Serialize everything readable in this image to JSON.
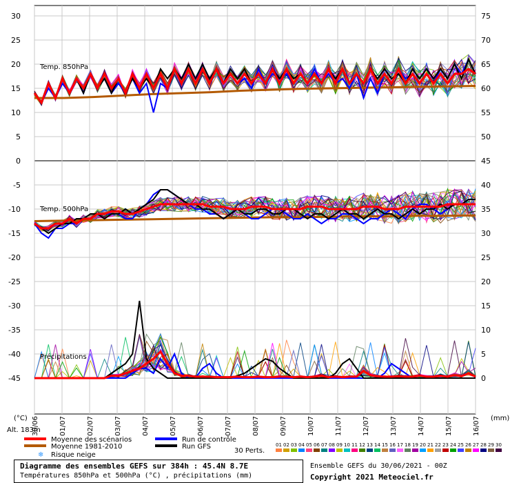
{
  "chart_data": {
    "type": "line",
    "left_axis_label": "(°C)",
    "right_axis_label": "(mm)",
    "left_ticks": [
      30,
      25,
      20,
      15,
      10,
      5,
      0,
      -5,
      -10,
      -15,
      -20,
      -25,
      -30,
      -35,
      -40,
      -45
    ],
    "right_ticks": [
      75,
      70,
      65,
      60,
      55,
      50,
      45,
      40,
      35,
      30,
      25,
      20,
      15,
      10,
      5,
      0
    ],
    "x_ticks": [
      "01/07",
      "02/07",
      "03/07",
      "04/07",
      "05/07",
      "06/07",
      "07/07",
      "08/07",
      "09/07",
      "10/07",
      "11/07",
      "12/07",
      "13/07",
      "14/07",
      "15/07",
      "16/07"
    ],
    "first_x_tick": "30/06",
    "panel_labels": {
      "t850": "Temp. 850hPa",
      "t500": "Temp. 500hPa",
      "precip": "Précipitations"
    },
    "altitude": "Alt. 183m",
    "series": [
      {
        "name": "Moyenne des scénarios",
        "color": "#ff0000",
        "t850": [
          14,
          12,
          16,
          13,
          17,
          14,
          17,
          15,
          18,
          15,
          18,
          15,
          17,
          14,
          18,
          15,
          18,
          15,
          18,
          15,
          19,
          16,
          19,
          16,
          19,
          16,
          19,
          16,
          18,
          16,
          18,
          16,
          18,
          16,
          19,
          16,
          19,
          16,
          18,
          16,
          18,
          16,
          19,
          16,
          19,
          16,
          18,
          16,
          19,
          16,
          18,
          16,
          19,
          16,
          18,
          16,
          18,
          16,
          18,
          16,
          18,
          18,
          19,
          18
        ],
        "t500": [
          -13,
          -14,
          -14,
          -13,
          -13,
          -12,
          -13,
          -12,
          -12,
          -11,
          -11,
          -10.5,
          -10.5,
          -11,
          -11,
          -10.5,
          -10,
          -9.5,
          -9,
          -9,
          -9,
          -9,
          -9,
          -9,
          -9,
          -9.5,
          -9.5,
          -9.5,
          -10,
          -10,
          -10,
          -9.5,
          -9.5,
          -9.5,
          -10,
          -10,
          -10,
          -10,
          -10,
          -9.5,
          -9.5,
          -9.5,
          -10,
          -10,
          -10,
          -10,
          -10,
          -9.5,
          -9.5,
          -9.5,
          -10,
          -10,
          -10,
          -9.5,
          -9.5,
          -9.5,
          -9.5,
          -9.5,
          -9.5,
          -9,
          -9,
          -9,
          -9,
          -9
        ],
        "precip": [
          0,
          0,
          0,
          0,
          0,
          0,
          0,
          0,
          0,
          0,
          0,
          0.5,
          0.5,
          1,
          1.5,
          2,
          3,
          4,
          5.5,
          3,
          1,
          0.5,
          0.5,
          0.3,
          0.3,
          0.3,
          0.2,
          0.2,
          0.2,
          0.3,
          0.2,
          0.2,
          0.3,
          0.2,
          0.2,
          0.3,
          0.3,
          0.2,
          0.3,
          0.2,
          0.3,
          0.5,
          0.2,
          0.3,
          0.2,
          0.3,
          0.3,
          1.5,
          0.6,
          0.4,
          0.3,
          0.3,
          0.4,
          0.3,
          0.3,
          0.5,
          0.3,
          0.3,
          0.5,
          0.3,
          0.6,
          0.4,
          1,
          0.3
        ]
      },
      {
        "name": "Moyenne 1981-2010",
        "color": "#b35900",
        "t850": [
          13,
          13,
          13.2,
          13.5,
          13.8,
          14,
          14.2,
          14.5,
          14.7,
          14.9,
          15,
          15.1,
          15.2,
          15.3,
          15.4,
          15.5
        ],
        "t500": [
          -12.5,
          -12.4,
          -12.3,
          -12.2,
          -12.1,
          -12,
          -11.9,
          -11.8,
          -11.7,
          -11.7,
          -11.6,
          -11.5,
          -11.5,
          -11.4,
          -11.4,
          -11.3
        ],
        "precip": []
      },
      {
        "name": "Run de contrôle",
        "color": "#0000ff",
        "t850": [
          14,
          12,
          15,
          13,
          16,
          14,
          17,
          14,
          18,
          15,
          17,
          14,
          16,
          14,
          17,
          14,
          16,
          10,
          16,
          15,
          19,
          17,
          19,
          16,
          20,
          17,
          19,
          16,
          18,
          16,
          17,
          15,
          19,
          16,
          18,
          17,
          18,
          16,
          18,
          16,
          19,
          16,
          18,
          16,
          17,
          15,
          18,
          13,
          17,
          14,
          18,
          16,
          19,
          17,
          18,
          16,
          18,
          16,
          19,
          17,
          20,
          18,
          21,
          18
        ],
        "t500": [
          -13,
          -15,
          -16,
          -14,
          -14,
          -13,
          -13,
          -12,
          -12,
          -11,
          -11,
          -11,
          -11,
          -12,
          -12,
          -10,
          -9,
          -7,
          -6,
          -6,
          -7,
          -8,
          -9,
          -10,
          -10,
          -11,
          -11,
          -12,
          -11,
          -10,
          -11,
          -12,
          -12,
          -11,
          -10,
          -10,
          -11,
          -12,
          -12,
          -11,
          -12,
          -13,
          -12,
          -12,
          -11,
          -11,
          -12,
          -13,
          -12,
          -12,
          -11,
          -10,
          -11,
          -12,
          -10,
          -9,
          -9,
          -10,
          -11,
          -10,
          -9,
          -9,
          -8,
          -8
        ],
        "precip": [
          0,
          0,
          0,
          0,
          0,
          0,
          0,
          0,
          0,
          0,
          0,
          0,
          0,
          0,
          1,
          2,
          2,
          1,
          4,
          2,
          5,
          1,
          0,
          0,
          2,
          3,
          1,
          0,
          0,
          0,
          0,
          0,
          0,
          0,
          0,
          0,
          0,
          0,
          0,
          0,
          0,
          0,
          0,
          0,
          0,
          0,
          0,
          0,
          0,
          0,
          1,
          3,
          2,
          1,
          0,
          0,
          0,
          0,
          0,
          0,
          0,
          0,
          0,
          0
        ]
      },
      {
        "name": "Run GFS",
        "color": "#000000",
        "t850": [
          14,
          12,
          16,
          13,
          17,
          14,
          17,
          14,
          18,
          15,
          17,
          14,
          17,
          14,
          17,
          15,
          17,
          15,
          19,
          17,
          19,
          17,
          20,
          17,
          20,
          17,
          19,
          16,
          19,
          17,
          19,
          16,
          18,
          16,
          19,
          17,
          19,
          17,
          18,
          16,
          18,
          16,
          19,
          17,
          19,
          16,
          18,
          16,
          19,
          17,
          19,
          17,
          18,
          16,
          19,
          17,
          19,
          17,
          19,
          17,
          20,
          17,
          21,
          18
        ],
        "t500": [
          -13,
          -14,
          -15,
          -14,
          -13,
          -13,
          -12,
          -12,
          -11,
          -11,
          -12,
          -11,
          -11,
          -10,
          -11,
          -10,
          -9,
          -8,
          -6,
          -6,
          -7,
          -8,
          -9,
          -9,
          -10,
          -10,
          -11,
          -12,
          -11,
          -10,
          -11,
          -11,
          -10,
          -10,
          -11,
          -11,
          -10,
          -10,
          -11,
          -12,
          -11,
          -11,
          -12,
          -11,
          -10,
          -11,
          -11,
          -12,
          -11,
          -10,
          -11,
          -11,
          -12,
          -11,
          -10,
          -11,
          -10,
          -10,
          -9,
          -10,
          -9,
          -9,
          -8,
          -8
        ],
        "precip": [
          0,
          0,
          0,
          0,
          0,
          0,
          0,
          0,
          0,
          0,
          0,
          1,
          2,
          3,
          5,
          16,
          4,
          2,
          1,
          0,
          0,
          0,
          0,
          0,
          0,
          0,
          0,
          0,
          0,
          0.5,
          1,
          2,
          3,
          4,
          3.5,
          2,
          1,
          0,
          0,
          0,
          0,
          0,
          0,
          1,
          3,
          4,
          2,
          0,
          0,
          0,
          0,
          0,
          0,
          0,
          0,
          0,
          0,
          0,
          0,
          0,
          0,
          0,
          0,
          0
        ]
      }
    ],
    "legend": {
      "items": [
        {
          "label": "Moyenne des scénarios",
          "color": "#ff0000"
        },
        {
          "label": "Moyenne 1981-2010",
          "color": "#b35900"
        },
        {
          "label": "Run de contrôle",
          "color": "#0000ff"
        },
        {
          "label": "Run GFS",
          "color": "#000000"
        }
      ],
      "snow_label": "Risque neige",
      "perts_label": "30 Perts.",
      "pert_numbers": [
        "01",
        "02",
        "03",
        "04",
        "05",
        "06",
        "07",
        "08",
        "09",
        "10",
        "11",
        "12",
        "13",
        "14",
        "15",
        "16",
        "17",
        "18",
        "19",
        "20",
        "21",
        "22",
        "23",
        "24",
        "25",
        "26",
        "27",
        "28",
        "29",
        "30"
      ],
      "pert_colors": [
        "#ff8040",
        "#d0a000",
        "#80c000",
        "#0080ff",
        "#ff4080",
        "#804000",
        "#008080",
        "#8000ff",
        "#c0c000",
        "#00c0c0",
        "#ff0080",
        "#408000",
        "#004080",
        "#00c060",
        "#c08040",
        "#6060c0",
        "#ff60ff",
        "#608060",
        "#a000a0",
        "#00a0ff",
        "#ffa000",
        "#a0a0a0",
        "#c00000",
        "#00a000",
        "#4040ff",
        "#c08000",
        "#ff00ff",
        "#000080",
        "#806040",
        "#400040"
      ]
    }
  },
  "footer": {
    "title": "Diagramme des ensembles GEFS sur 384h : 45.4N 8.7E",
    "subtitle": "Températures 850hPa et 500hPa (°C) , précipitations (mm)",
    "ensemble_run": "Ensemble GEFS du 30/06/2021 - 00Z",
    "copyright": "Copyright 2021 Meteociel.fr"
  }
}
